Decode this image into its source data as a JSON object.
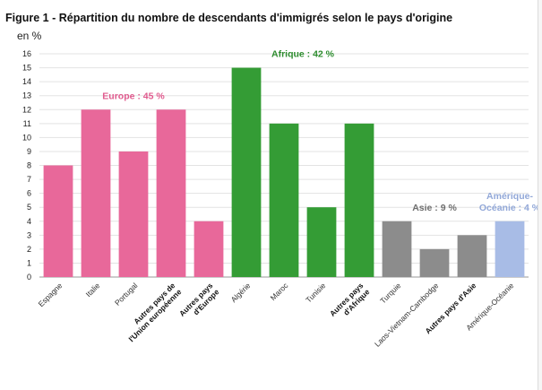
{
  "chart_data": {
    "type": "bar",
    "title": "Figure 1 - Répartition du nombre de descendants d'immigrés selon le pays d'origine",
    "ylabel": "en %",
    "ylim": [
      0,
      16
    ],
    "yticks": [
      0,
      1,
      2,
      3,
      4,
      5,
      6,
      7,
      8,
      9,
      10,
      11,
      12,
      13,
      14,
      15,
      16
    ],
    "grid": true,
    "categories": [
      {
        "label": "Espagne",
        "lines": [
          "Espagne"
        ],
        "bold": false,
        "value": 8,
        "group": 0
      },
      {
        "label": "Italie",
        "lines": [
          "Italie"
        ],
        "bold": false,
        "value": 12,
        "group": 0
      },
      {
        "label": "Portugal",
        "lines": [
          "Portugal"
        ],
        "bold": false,
        "value": 9,
        "group": 0
      },
      {
        "label": "Autres pays de l'Union européenne",
        "lines": [
          "Autres pays de",
          "l'Union européenne"
        ],
        "bold": true,
        "value": 12,
        "group": 0
      },
      {
        "label": "Autres pays d'Europe",
        "lines": [
          "Autres pays",
          "d'Europe"
        ],
        "bold": true,
        "value": 4,
        "group": 0
      },
      {
        "label": "Algérie",
        "lines": [
          "Algérie"
        ],
        "bold": false,
        "value": 15,
        "group": 1
      },
      {
        "label": "Maroc",
        "lines": [
          "Maroc"
        ],
        "bold": false,
        "value": 11,
        "group": 1
      },
      {
        "label": "Tunisie",
        "lines": [
          "Tunisie"
        ],
        "bold": false,
        "value": 5,
        "group": 1
      },
      {
        "label": "Autres pays d'Afrique",
        "lines": [
          "Autres pays",
          "d'Afrique"
        ],
        "bold": true,
        "value": 11,
        "group": 1
      },
      {
        "label": "Turquie",
        "lines": [
          "Turquie"
        ],
        "bold": false,
        "value": 4,
        "group": 2
      },
      {
        "label": "Laos-Vietnam-Cambodge",
        "lines": [
          "Laos-Vietnam-Cambodge"
        ],
        "bold": false,
        "value": 2,
        "group": 2
      },
      {
        "label": "Autres pays d'Asie",
        "lines": [
          "Autres pays d'Asie"
        ],
        "bold": true,
        "value": 3,
        "group": 2
      },
      {
        "label": "Amérique-Océanie",
        "lines": [
          "Amérique-Océanie"
        ],
        "bold": false,
        "value": 4,
        "group": 3
      }
    ],
    "groups": [
      {
        "name": "Europe : 45 %",
        "lines": [
          "Europe : 45 %"
        ],
        "color": "#e8689a",
        "label_color": "#e05a8e"
      },
      {
        "name": "Afrique : 42 %",
        "lines": [
          "Afrique : 42 %"
        ],
        "color": "#349c35",
        "label_color": "#2d8c2e"
      },
      {
        "name": "Asie : 9 %",
        "lines": [
          "Asie : 9 %"
        ],
        "color": "#8c8c8c",
        "label_color": "#6e6e6e"
      },
      {
        "name": "Amérique-Océanie : 4 %",
        "lines": [
          "Amérique-",
          "Océanie : 4 %"
        ],
        "color": "#a8bce6",
        "label_color": "#92a8d8"
      }
    ]
  }
}
